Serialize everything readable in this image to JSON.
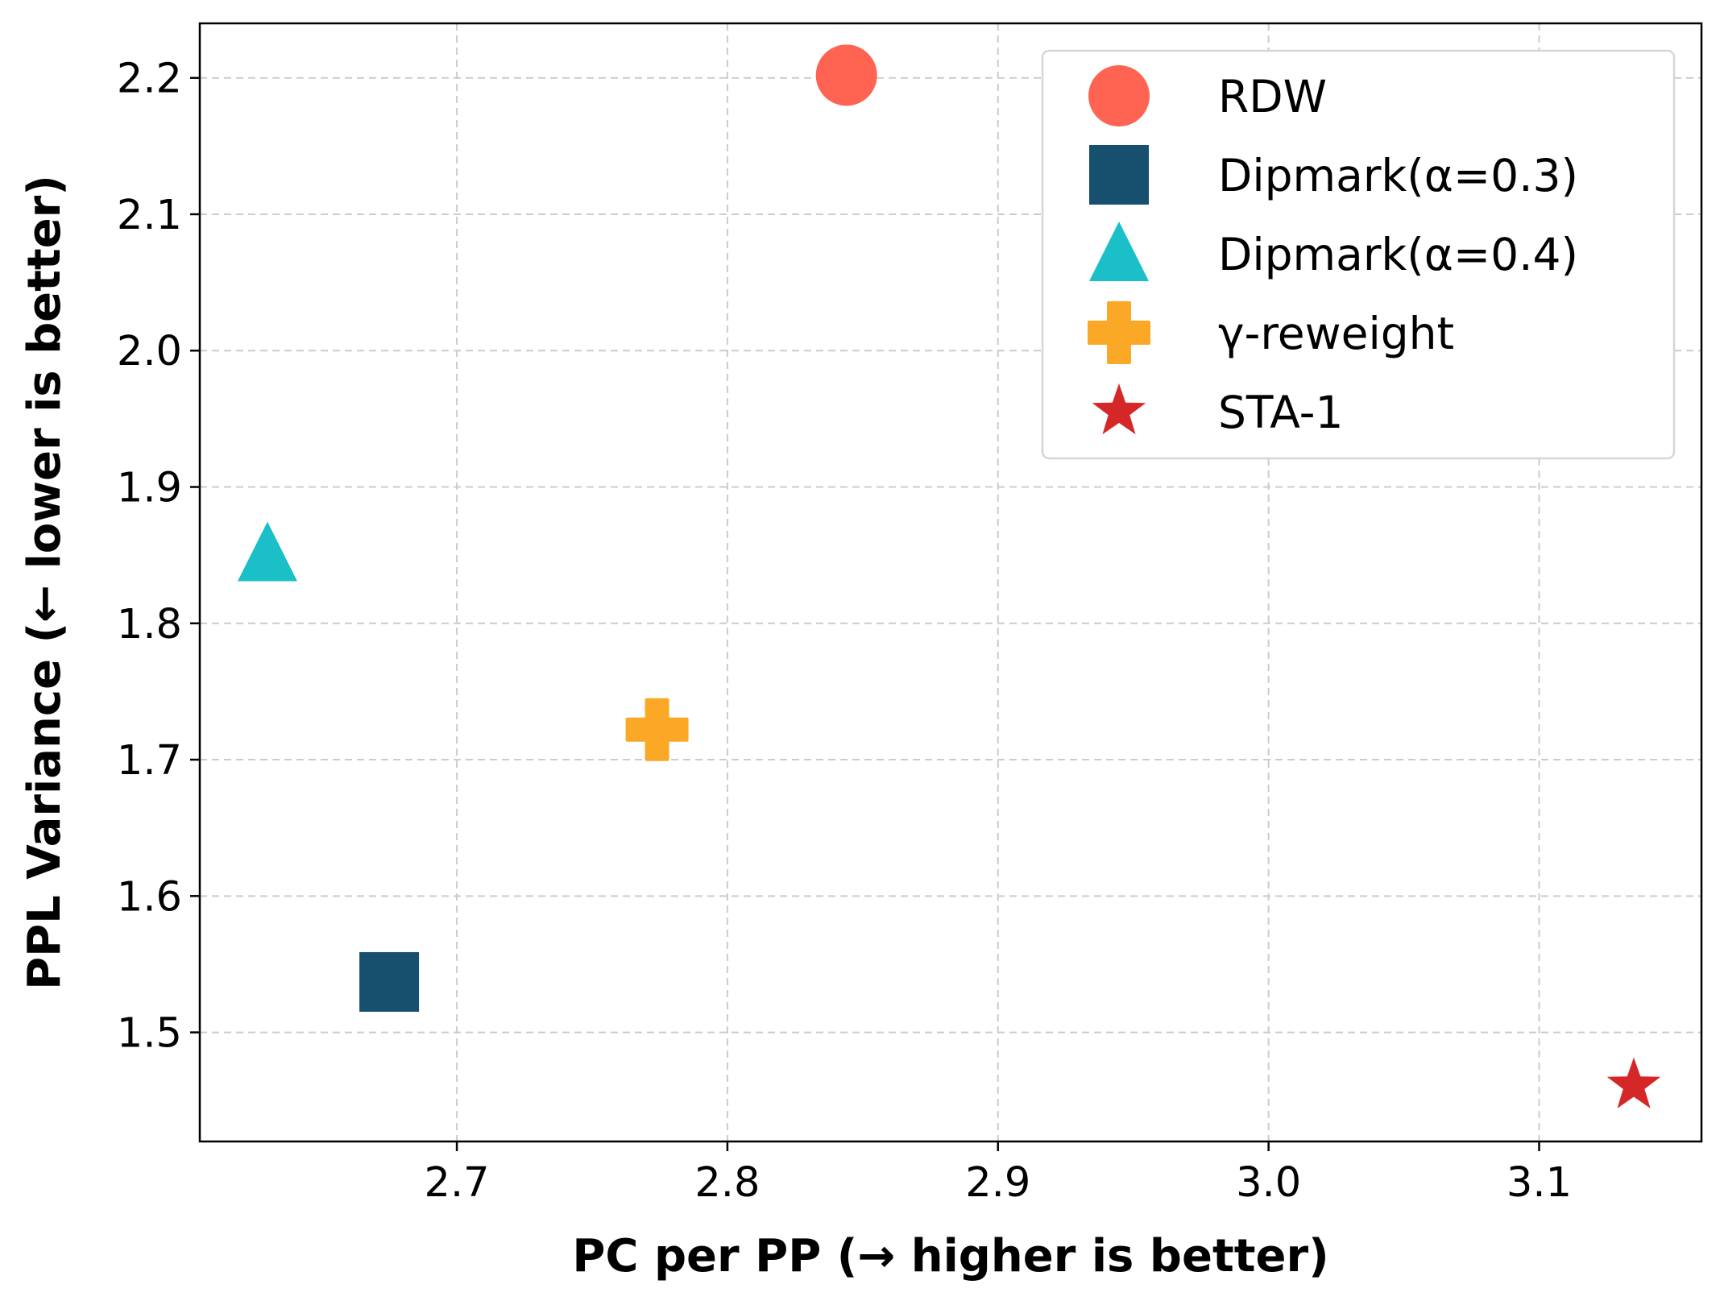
{
  "chart_data": {
    "type": "scatter",
    "title": "",
    "xlabel": "PC per PP (→ higher is better)",
    "ylabel": "PPL Variance (← lower is better)",
    "xlim": [
      2.605,
      3.16
    ],
    "ylim": [
      1.42,
      2.24
    ],
    "xticks": [
      2.7,
      2.8,
      2.9,
      3.0,
      3.1
    ],
    "yticks": [
      1.5,
      1.6,
      1.7,
      1.8,
      1.9,
      2.0,
      2.1,
      2.2
    ],
    "grid": true,
    "legend_position": "top-right",
    "series": [
      {
        "name": "RDW",
        "marker": "circle",
        "color": "#ff6352",
        "x": 2.844,
        "y": 2.202
      },
      {
        "name": "Dipmark(α=0.3)",
        "marker": "square",
        "color": "#174f6e",
        "x": 2.675,
        "y": 1.537
      },
      {
        "name": "Dipmark(α=0.4)",
        "marker": "triangle",
        "color": "#1bbfc8",
        "x": 2.63,
        "y": 1.851
      },
      {
        "name": "γ-reweight",
        "marker": "plus",
        "color": "#fba827",
        "x": 2.774,
        "y": 1.722
      },
      {
        "name": "STA-1",
        "marker": "star",
        "color": "#d62728",
        "x": 3.135,
        "y": 1.461
      }
    ]
  }
}
